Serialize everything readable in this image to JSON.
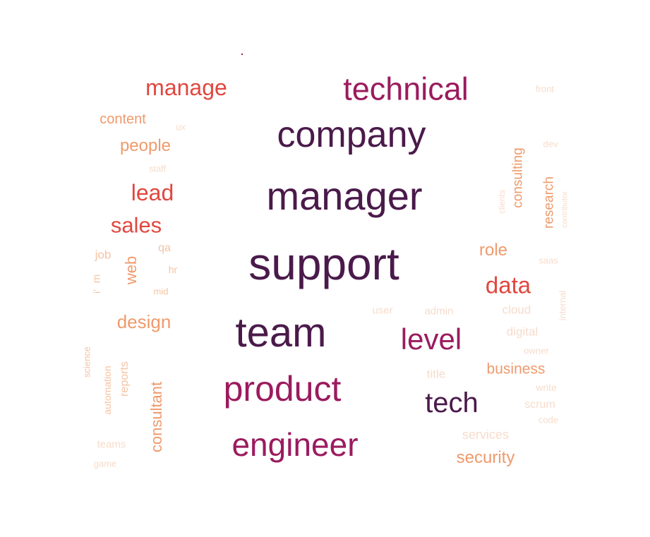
{
  "colors": {
    "darkest": "#4a1a4a",
    "deep": "#9b1b5e",
    "red": "#e0473f",
    "orange": "#ef9a6c",
    "peach": "#f5c3a3",
    "faint": "#f7dccb"
  },
  "words": [
    {
      "text": "support",
      "tone": "darkest"
    },
    {
      "text": "manager",
      "tone": "darkest"
    },
    {
      "text": "company",
      "tone": "darkest"
    },
    {
      "text": "team",
      "tone": "darkest"
    },
    {
      "text": "technical",
      "tone": "deep"
    },
    {
      "text": "product",
      "tone": "deep"
    },
    {
      "text": "engineer",
      "tone": "deep"
    },
    {
      "text": "level",
      "tone": "deep"
    },
    {
      "text": "tech",
      "tone": "darkest"
    },
    {
      "text": "manage",
      "tone": "red"
    },
    {
      "text": "lead",
      "tone": "red"
    },
    {
      "text": "sales",
      "tone": "red"
    },
    {
      "text": "data",
      "tone": "red"
    },
    {
      "text": "content",
      "tone": "orange"
    },
    {
      "text": "people",
      "tone": "orange"
    },
    {
      "text": "design",
      "tone": "orange"
    },
    {
      "text": "web",
      "tone": "orange"
    },
    {
      "text": "consultant",
      "tone": "orange"
    },
    {
      "text": "role",
      "tone": "orange"
    },
    {
      "text": "business",
      "tone": "orange"
    },
    {
      "text": "security",
      "tone": "orange"
    },
    {
      "text": "consulting",
      "tone": "orange"
    },
    {
      "text": "research",
      "tone": "orange"
    },
    {
      "text": "reports",
      "tone": "peach"
    },
    {
      "text": "automation",
      "tone": "peach"
    },
    {
      "text": "science",
      "tone": "peach"
    },
    {
      "text": "job",
      "tone": "peach"
    },
    {
      "text": "qa",
      "tone": "peach"
    },
    {
      "text": "hr",
      "tone": "peach"
    },
    {
      "text": "mid",
      "tone": "peach"
    },
    {
      "text": "m",
      "tone": "peach"
    },
    {
      "text": "i'",
      "tone": "peach"
    },
    {
      "text": "ux",
      "tone": "faint"
    },
    {
      "text": "staff",
      "tone": "faint"
    },
    {
      "text": "teams",
      "tone": "faint"
    },
    {
      "text": "game",
      "tone": "faint"
    },
    {
      "text": "user",
      "tone": "faint"
    },
    {
      "text": "admin",
      "tone": "faint"
    },
    {
      "text": "cloud",
      "tone": "faint"
    },
    {
      "text": "digital",
      "tone": "faint"
    },
    {
      "text": "owner",
      "tone": "faint"
    },
    {
      "text": "title",
      "tone": "faint"
    },
    {
      "text": "write",
      "tone": "faint"
    },
    {
      "text": "scrum",
      "tone": "faint"
    },
    {
      "text": "code",
      "tone": "faint"
    },
    {
      "text": "services",
      "tone": "faint"
    },
    {
      "text": "front",
      "tone": "faint"
    },
    {
      "text": "dev",
      "tone": "faint"
    },
    {
      "text": "saas",
      "tone": "faint"
    },
    {
      "text": "clients",
      "tone": "faint"
    },
    {
      "text": "contributor",
      "tone": "faint"
    },
    {
      "text": "internal",
      "tone": "faint"
    },
    {
      "text": ".",
      "tone": "deep"
    }
  ]
}
